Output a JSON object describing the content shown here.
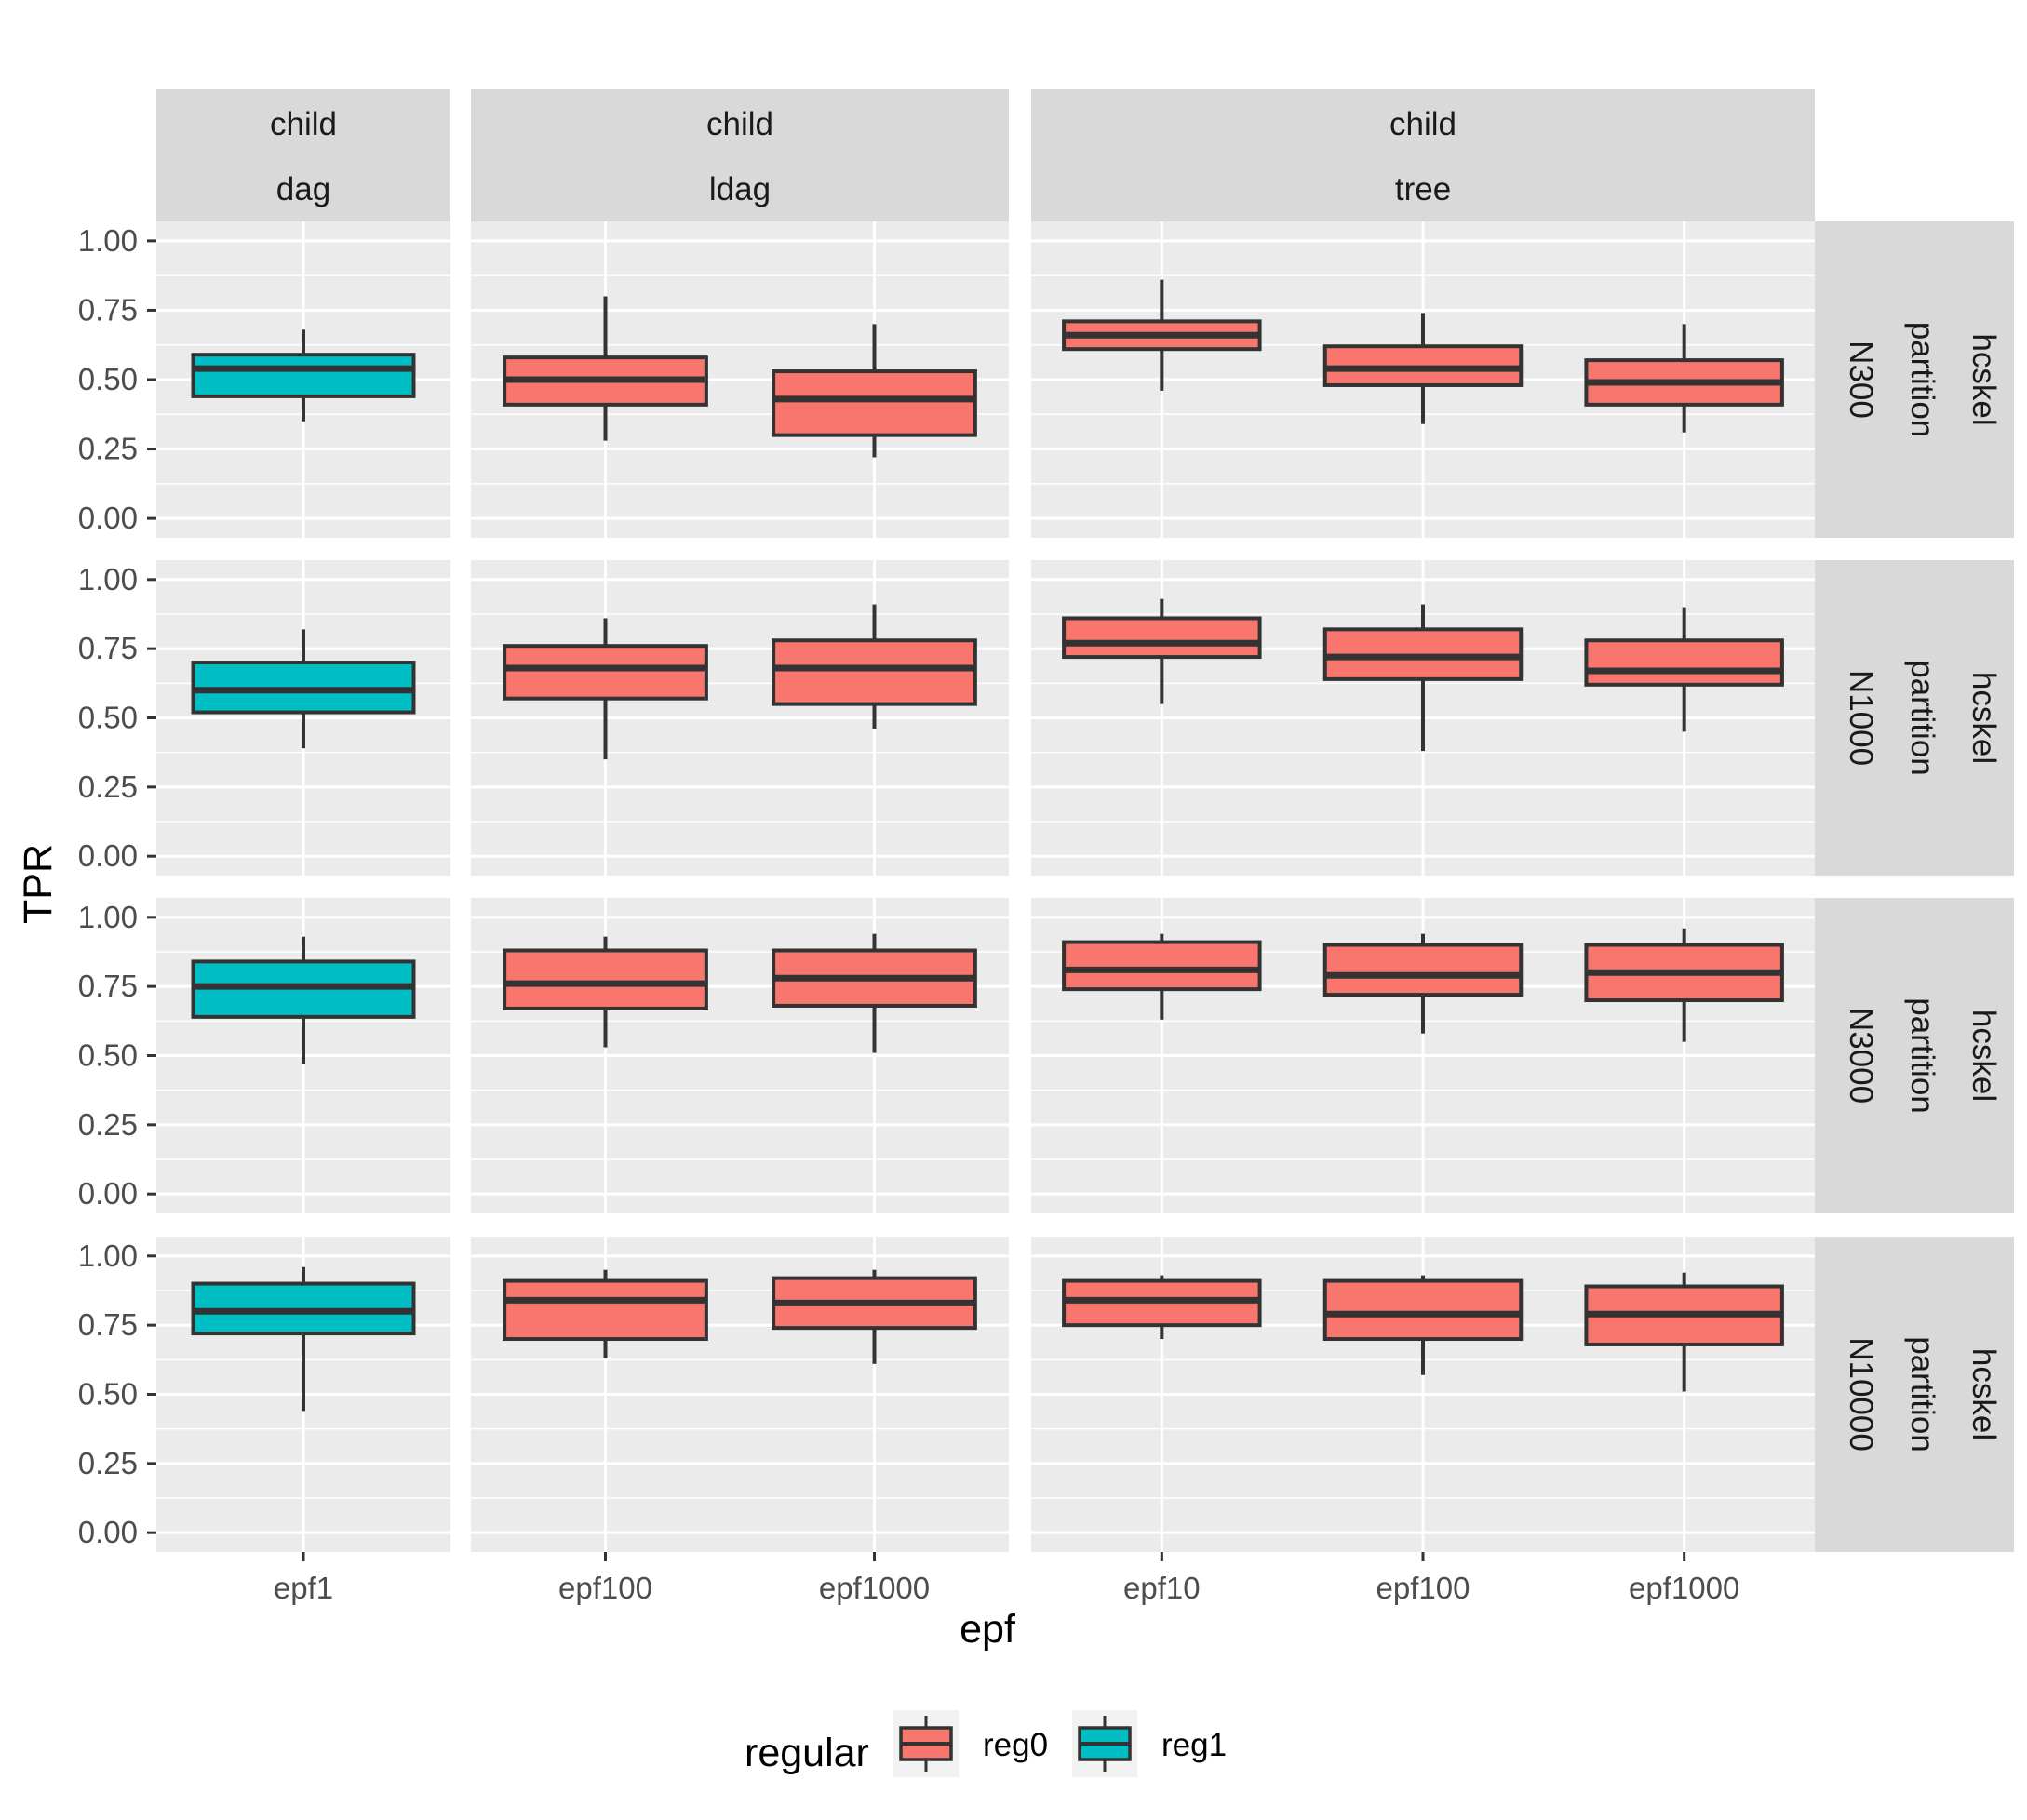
{
  "chart_data": {
    "type": "box",
    "xlabel": "epf",
    "ylabel": "TPR",
    "ylim": [
      0,
      1
    ],
    "y_ticks": [
      "0.00",
      "0.25",
      "0.50",
      "0.75",
      "1.00"
    ],
    "col_facets": [
      {
        "top": "child",
        "bottom": "dag",
        "categories": [
          "epf1"
        ]
      },
      {
        "top": "child",
        "bottom": "ldag",
        "categories": [
          "epf100",
          "epf1000"
        ]
      },
      {
        "top": "child",
        "bottom": "tree",
        "categories": [
          "epf10",
          "epf100",
          "epf1000"
        ]
      }
    ],
    "row_facets": [
      {
        "lines": [
          "hcskel",
          "partition",
          "N300"
        ]
      },
      {
        "lines": [
          "hcskel",
          "partition",
          "N1000"
        ]
      },
      {
        "lines": [
          "hcskel",
          "partition",
          "N3000"
        ]
      },
      {
        "lines": [
          "hcskel",
          "partition",
          "N10000"
        ]
      }
    ],
    "legend": {
      "title": "regular",
      "position": "bottom",
      "entries": [
        {
          "name": "reg0",
          "color": "#F8766D"
        },
        {
          "name": "reg1",
          "color": "#00BFC4"
        }
      ]
    },
    "boxes": [
      {
        "row": 0,
        "col": 0,
        "x": "epf1",
        "group": "reg1",
        "min": 0.35,
        "q1": 0.44,
        "median": 0.54,
        "q3": 0.59,
        "max": 0.68
      },
      {
        "row": 0,
        "col": 1,
        "x": "epf100",
        "group": "reg0",
        "min": 0.28,
        "q1": 0.41,
        "median": 0.5,
        "q3": 0.58,
        "max": 0.8
      },
      {
        "row": 0,
        "col": 1,
        "x": "epf1000",
        "group": "reg0",
        "min": 0.22,
        "q1": 0.3,
        "median": 0.43,
        "q3": 0.53,
        "max": 0.7
      },
      {
        "row": 0,
        "col": 2,
        "x": "epf10",
        "group": "reg0",
        "min": 0.46,
        "q1": 0.61,
        "median": 0.66,
        "q3": 0.71,
        "max": 0.86
      },
      {
        "row": 0,
        "col": 2,
        "x": "epf100",
        "group": "reg0",
        "min": 0.34,
        "q1": 0.48,
        "median": 0.54,
        "q3": 0.62,
        "max": 0.74
      },
      {
        "row": 0,
        "col": 2,
        "x": "epf1000",
        "group": "reg0",
        "min": 0.31,
        "q1": 0.41,
        "median": 0.49,
        "q3": 0.57,
        "max": 0.7
      },
      {
        "row": 1,
        "col": 0,
        "x": "epf1",
        "group": "reg1",
        "min": 0.39,
        "q1": 0.52,
        "median": 0.6,
        "q3": 0.7,
        "max": 0.82
      },
      {
        "row": 1,
        "col": 1,
        "x": "epf100",
        "group": "reg0",
        "min": 0.35,
        "q1": 0.57,
        "median": 0.68,
        "q3": 0.76,
        "max": 0.86
      },
      {
        "row": 1,
        "col": 1,
        "x": "epf1000",
        "group": "reg0",
        "min": 0.46,
        "q1": 0.55,
        "median": 0.68,
        "q3": 0.78,
        "max": 0.91
      },
      {
        "row": 1,
        "col": 2,
        "x": "epf10",
        "group": "reg0",
        "min": 0.55,
        "q1": 0.72,
        "median": 0.77,
        "q3": 0.86,
        "max": 0.93
      },
      {
        "row": 1,
        "col": 2,
        "x": "epf100",
        "group": "reg0",
        "min": 0.38,
        "q1": 0.64,
        "median": 0.72,
        "q3": 0.82,
        "max": 0.91
      },
      {
        "row": 1,
        "col": 2,
        "x": "epf1000",
        "group": "reg0",
        "min": 0.45,
        "q1": 0.62,
        "median": 0.67,
        "q3": 0.78,
        "max": 0.9
      },
      {
        "row": 2,
        "col": 0,
        "x": "epf1",
        "group": "reg1",
        "min": 0.47,
        "q1": 0.64,
        "median": 0.75,
        "q3": 0.84,
        "max": 0.93
      },
      {
        "row": 2,
        "col": 1,
        "x": "epf100",
        "group": "reg0",
        "min": 0.53,
        "q1": 0.67,
        "median": 0.76,
        "q3": 0.88,
        "max": 0.93
      },
      {
        "row": 2,
        "col": 1,
        "x": "epf1000",
        "group": "reg0",
        "min": 0.51,
        "q1": 0.68,
        "median": 0.78,
        "q3": 0.88,
        "max": 0.94
      },
      {
        "row": 2,
        "col": 2,
        "x": "epf10",
        "group": "reg0",
        "min": 0.63,
        "q1": 0.74,
        "median": 0.81,
        "q3": 0.91,
        "max": 0.94
      },
      {
        "row": 2,
        "col": 2,
        "x": "epf100",
        "group": "reg0",
        "min": 0.58,
        "q1": 0.72,
        "median": 0.79,
        "q3": 0.9,
        "max": 0.94
      },
      {
        "row": 2,
        "col": 2,
        "x": "epf1000",
        "group": "reg0",
        "min": 0.55,
        "q1": 0.7,
        "median": 0.8,
        "q3": 0.9,
        "max": 0.96
      },
      {
        "row": 3,
        "col": 0,
        "x": "epf1",
        "group": "reg1",
        "min": 0.44,
        "q1": 0.72,
        "median": 0.8,
        "q3": 0.9,
        "max": 0.96
      },
      {
        "row": 3,
        "col": 1,
        "x": "epf100",
        "group": "reg0",
        "min": 0.63,
        "q1": 0.7,
        "median": 0.84,
        "q3": 0.91,
        "max": 0.95
      },
      {
        "row": 3,
        "col": 1,
        "x": "epf1000",
        "group": "reg0",
        "min": 0.61,
        "q1": 0.74,
        "median": 0.83,
        "q3": 0.92,
        "max": 0.95
      },
      {
        "row": 3,
        "col": 2,
        "x": "epf10",
        "group": "reg0",
        "min": 0.7,
        "q1": 0.75,
        "median": 0.84,
        "q3": 0.91,
        "max": 0.93
      },
      {
        "row": 3,
        "col": 2,
        "x": "epf100",
        "group": "reg0",
        "min": 0.57,
        "q1": 0.7,
        "median": 0.79,
        "q3": 0.91,
        "max": 0.93
      },
      {
        "row": 3,
        "col": 2,
        "x": "epf1000",
        "group": "reg0",
        "min": 0.51,
        "q1": 0.68,
        "median": 0.79,
        "q3": 0.89,
        "max": 0.94
      }
    ]
  }
}
